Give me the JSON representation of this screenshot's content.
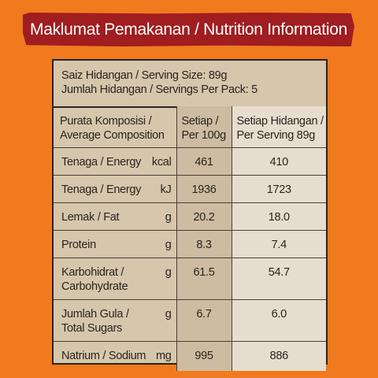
{
  "banner": {
    "title": "Maklumat Pemakanan / Nutrition Information"
  },
  "serving": {
    "size": "Saiz Hidangan / Serving Size: 89g",
    "per_pack": "Jumlah Hidangan / Servings Per Pack: 5"
  },
  "header": {
    "col1": [
      "Purata Komposisi /",
      "Average Composition"
    ],
    "col2": [
      "Setiap /",
      "Per 100g"
    ],
    "col3": [
      "Setiap Hidangan /",
      "Per Serving 89g"
    ]
  },
  "rows": [
    {
      "label": [
        "Tenaga / Energy"
      ],
      "unit": "kcal",
      "per100": "461",
      "perServing": "410"
    },
    {
      "label": [
        "Tenaga / Energy"
      ],
      "unit": "kJ",
      "per100": "1936",
      "perServing": "1723"
    },
    {
      "label": [
        "Lemak / Fat"
      ],
      "unit": "g",
      "per100": "20.2",
      "perServing": "18.0"
    },
    {
      "label": [
        "Protein"
      ],
      "unit": "g",
      "per100": "8.3",
      "perServing": "7.4"
    },
    {
      "label": [
        "Karbohidrat /",
        "Carbohydrate"
      ],
      "unit": "g",
      "per100": "61.5",
      "perServing": "54.7"
    },
    {
      "label": [
        "Jumlah Gula /",
        "Total Sugars"
      ],
      "unit": "g",
      "per100": "6.7",
      "perServing": "6.0"
    },
    {
      "label": [
        "Natrium / Sodium"
      ],
      "unit": "mg",
      "per100": "995",
      "perServing": "886"
    }
  ],
  "colors": {
    "background": "#f17a1e",
    "banner": "#a01d20",
    "panel": "#d6c6ac",
    "per_serving_column": "#e7ddce"
  }
}
